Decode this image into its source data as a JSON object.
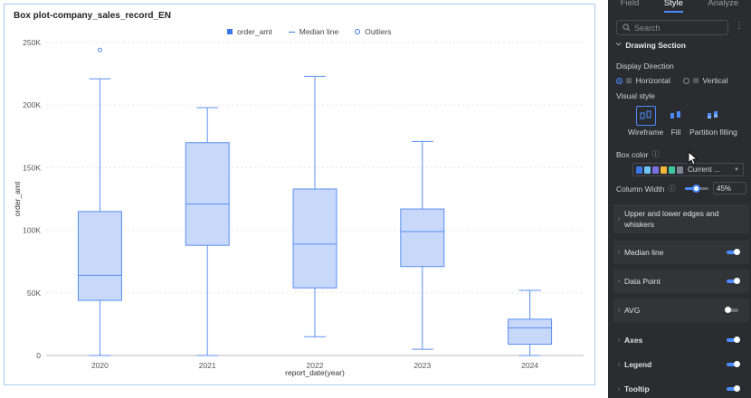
{
  "chart": {
    "title": "Box plot-company_sales_record_EN",
    "legend": {
      "series": "order_amt",
      "median": "Median line",
      "outliers": "Outliers"
    },
    "ylabel": "order_amt",
    "xlabel": "report_date(year)",
    "yticks": [
      "250K",
      "200K",
      "150K",
      "100K",
      "50K",
      "0"
    ]
  },
  "chart_data": {
    "type": "box",
    "title": "Box plot-company_sales_record_EN",
    "xlabel": "report_date(year)",
    "ylabel": "order_amt",
    "ylim": [
      0,
      250000
    ],
    "categories": [
      "2020",
      "2021",
      "2022",
      "2023",
      "2024"
    ],
    "boxes": [
      {
        "min": 0,
        "q1": 44000,
        "median": 64000,
        "q3": 115000,
        "max": 221000,
        "outliers": [
          244000
        ]
      },
      {
        "min": 0,
        "q1": 88000,
        "median": 121000,
        "q3": 170000,
        "max": 198000,
        "outliers": []
      },
      {
        "min": 15000,
        "q1": 54000,
        "median": 89000,
        "q3": 133000,
        "max": 223000,
        "outliers": []
      },
      {
        "min": 5000,
        "q1": 71000,
        "median": 99000,
        "q3": 117000,
        "max": 171000,
        "outliers": []
      },
      {
        "min": 0,
        "q1": 9000,
        "median": 22000,
        "q3": 29000,
        "max": 52000,
        "outliers": []
      }
    ],
    "color": "#5b8ff0",
    "fill": "#c7d8fb",
    "grid": true,
    "legend_position": "top-center"
  },
  "panel": {
    "tabs": [
      "Field",
      "Style",
      "Analyze"
    ],
    "active_tab": "Style",
    "search_placeholder": "Search",
    "section": "Drawing Section",
    "display_direction_label": "Display Direction",
    "horizontal": "Horizontal",
    "vertical": "Vertical",
    "visual_style_label": "Visual style",
    "styles": [
      "Wireframe",
      "Fill",
      "Partition filling"
    ],
    "box_color_label": "Box color",
    "box_color_value": "Current ...",
    "palette": [
      "#3b78e7",
      "#6fc3f7",
      "#7b6fe0",
      "#f2b63a",
      "#3fc7a0",
      "#7e8597"
    ],
    "column_width_label": "Column Width",
    "column_width_value": "45%",
    "column_width_fraction": 0.45,
    "accordions": [
      {
        "label": "Upper and lower edges and whiskers",
        "label2": "",
        "toggle": null
      },
      {
        "label": "Median line",
        "toggle": true
      },
      {
        "label": "Data Point",
        "toggle": true
      },
      {
        "label": "AVG",
        "toggle": false
      }
    ],
    "sections": [
      {
        "label": "Axes",
        "toggle": true
      },
      {
        "label": "Legend",
        "toggle": true
      },
      {
        "label": "Tooltip",
        "toggle": true
      }
    ]
  }
}
